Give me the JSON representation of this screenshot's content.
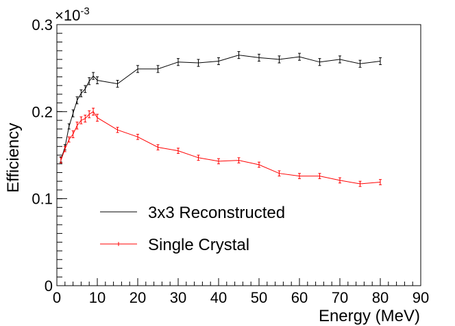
{
  "chart_data": {
    "type": "line",
    "title": "",
    "xlabel": "Energy (MeV)",
    "ylabel": "Efficiency",
    "y_multiplier_label": "×10",
    "y_multiplier_exponent": "-3",
    "xlim": [
      0,
      90
    ],
    "ylim": [
      0,
      0.3
    ],
    "x_ticks": [
      0,
      10,
      20,
      30,
      40,
      50,
      60,
      70,
      80,
      90
    ],
    "x_tick_labels": [
      "0",
      "10",
      "20",
      "30",
      "40",
      "50",
      "60",
      "70",
      "80",
      "90"
    ],
    "y_ticks": [
      0,
      0.1,
      0.2,
      0.3
    ],
    "y_tick_labels": [
      "0",
      "0.1",
      "0.2",
      "0.3"
    ],
    "legend_position": "center-left",
    "series": [
      {
        "name": "3x3 Reconstructed",
        "color": "#000000",
        "x": [
          1,
          2,
          3,
          4,
          5,
          6,
          7,
          8,
          9,
          10,
          15,
          20,
          25,
          30,
          35,
          40,
          45,
          50,
          55,
          60,
          65,
          70,
          75,
          80
        ],
        "values": [
          0.145,
          0.159,
          0.183,
          0.198,
          0.213,
          0.221,
          0.226,
          0.235,
          0.241,
          0.236,
          0.232,
          0.249,
          0.249,
          0.257,
          0.256,
          0.258,
          0.265,
          0.262,
          0.26,
          0.263,
          0.257,
          0.26,
          0.255,
          0.258
        ],
        "errors": [
          0.003,
          0.003,
          0.003,
          0.004,
          0.004,
          0.004,
          0.004,
          0.004,
          0.004,
          0.004,
          0.004,
          0.004,
          0.004,
          0.004,
          0.004,
          0.004,
          0.004,
          0.004,
          0.004,
          0.004,
          0.004,
          0.004,
          0.004,
          0.004
        ]
      },
      {
        "name": "Single Crystal",
        "color": "#ff0000",
        "x": [
          1,
          2,
          3,
          4,
          5,
          6,
          7,
          8,
          9,
          10,
          15,
          20,
          25,
          30,
          35,
          40,
          45,
          50,
          55,
          60,
          65,
          70,
          75,
          80
        ],
        "values": [
          0.144,
          0.157,
          0.168,
          0.174,
          0.184,
          0.19,
          0.192,
          0.197,
          0.2,
          0.193,
          0.179,
          0.171,
          0.159,
          0.155,
          0.147,
          0.143,
          0.144,
          0.139,
          0.129,
          0.126,
          0.126,
          0.121,
          0.117,
          0.119
        ],
        "errors": [
          0.003,
          0.003,
          0.003,
          0.004,
          0.004,
          0.004,
          0.004,
          0.004,
          0.004,
          0.004,
          0.003,
          0.003,
          0.003,
          0.003,
          0.003,
          0.003,
          0.003,
          0.003,
          0.003,
          0.003,
          0.003,
          0.003,
          0.003,
          0.003
        ]
      }
    ]
  }
}
